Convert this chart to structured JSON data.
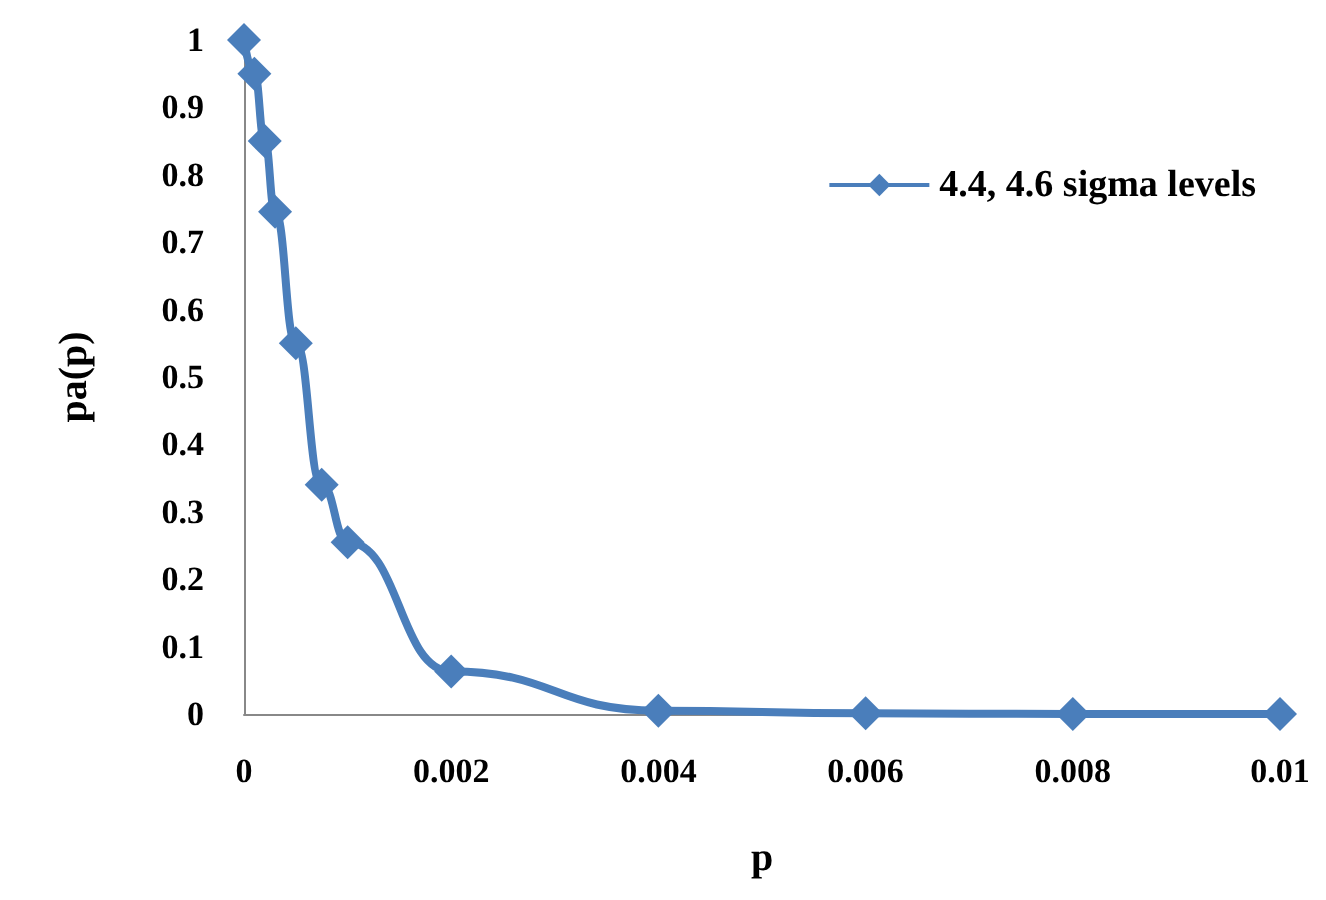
{
  "chart_data": {
    "type": "line",
    "xlabel": "p",
    "ylabel": "pa(p)",
    "x": [
      0,
      0.0001,
      0.0002,
      0.0003,
      0.0005,
      0.00075,
      0.001,
      0.002,
      0.004,
      0.006,
      0.008,
      0.01
    ],
    "series": [
      {
        "name": "4.4, 4.6 sigma levels",
        "color": "#4a7ebb",
        "values": [
          1,
          0.95,
          0.85,
          0.745,
          0.55,
          0.34,
          0.255,
          0.063,
          0.005,
          0.001,
          0,
          0
        ]
      }
    ],
    "xlim": [
      0,
      0.01
    ],
    "xticks": [
      0,
      0.002,
      0.004,
      0.006,
      0.008,
      0.01
    ],
    "ylim": [
      0,
      1
    ],
    "yticks": [
      0,
      0.1,
      0.2,
      0.3,
      0.4,
      0.5,
      0.6,
      0.7,
      0.8,
      0.9,
      1
    ],
    "grid": false,
    "legend": "top right",
    "marker": "diamond",
    "line_style": "solid"
  }
}
